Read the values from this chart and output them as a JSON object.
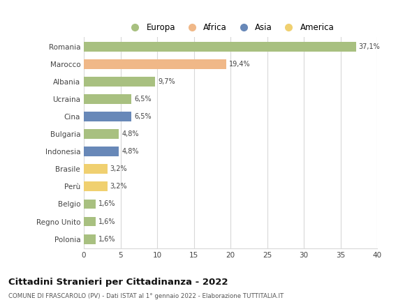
{
  "categories": [
    "Romania",
    "Marocco",
    "Albania",
    "Ucraina",
    "Cina",
    "Bulgaria",
    "Indonesia",
    "Brasile",
    "Perù",
    "Belgio",
    "Regno Unito",
    "Polonia"
  ],
  "values": [
    37.1,
    19.4,
    9.7,
    6.5,
    6.5,
    4.8,
    4.8,
    3.2,
    3.2,
    1.6,
    1.6,
    1.6
  ],
  "labels": [
    "37,1%",
    "19,4%",
    "9,7%",
    "6,5%",
    "6,5%",
    "4,8%",
    "4,8%",
    "3,2%",
    "3,2%",
    "1,6%",
    "1,6%",
    "1,6%"
  ],
  "colors": [
    "#a8c080",
    "#f0b888",
    "#a8c080",
    "#a8c080",
    "#6888b8",
    "#a8c080",
    "#6888b8",
    "#f0d070",
    "#f0d070",
    "#a8c080",
    "#a8c080",
    "#a8c080"
  ],
  "legend": {
    "Europa": "#a8c080",
    "Africa": "#f0b888",
    "Asia": "#6888b8",
    "America": "#f0d070"
  },
  "xlim": [
    0,
    40
  ],
  "xticks": [
    0,
    5,
    10,
    15,
    20,
    25,
    30,
    35,
    40
  ],
  "title": "Cittadini Stranieri per Cittadinanza - 2022",
  "subtitle": "COMUNE DI FRASCAROLO (PV) - Dati ISTAT al 1° gennaio 2022 - Elaborazione TUTTITALIA.IT",
  "bg_color": "#ffffff",
  "grid_color": "#d8d8d8",
  "bar_height": 0.55
}
